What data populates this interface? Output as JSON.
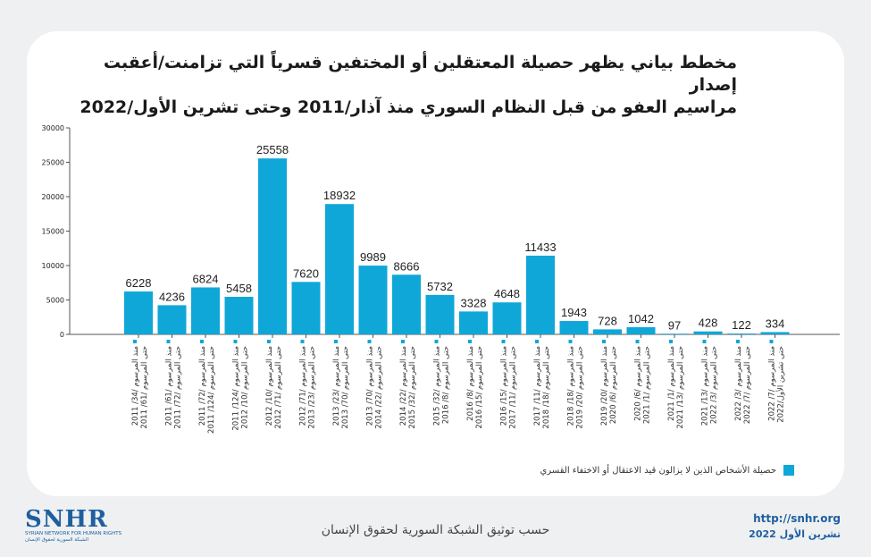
{
  "chart_data": {
    "type": "bar",
    "title": "مخطط بياني يظهر حصيلة المعتقلين أو المختفين قسرياً التي تزامنت/أعقبت إصدار مراسيم العفو من قبل النظام السوري منذ آذار/2011 وحتى تشرين الأول/2022",
    "title_lines": [
      "مخطط بياني يظهر حصيلة المعتقلين أو المختفين قسرياً التي تزامنت/أعقبت إصدار",
      "مراسيم العفو من قبل النظام السوري منذ آذار/2011 وحتى تشرين الأول/2022"
    ],
    "xlabel": "",
    "ylabel": "",
    "ylim": [
      0,
      30000
    ],
    "yticks": [
      0,
      5000,
      10000,
      15000,
      20000,
      25000,
      30000
    ],
    "grid": false,
    "legend_position": "bottom-right",
    "categories": [
      [
        "منذ المرسوم /34/ 2011",
        "حتى المرسوم /61/ 2011"
      ],
      [
        "منذ المرسوم /61/ 2011",
        "حتى المرسوم /72/ 2011"
      ],
      [
        "منذ المرسوم /72/ 2011",
        "حتى المرسوم /124/ 2011"
      ],
      [
        "منذ المرسوم /124/ 2011",
        "حتى المرسوم /10/ 2012"
      ],
      [
        "منذ المرسوم /10/ 2012",
        "حتى المرسوم /71/ 2012"
      ],
      [
        "منذ المرسوم /71/ 2012",
        "حتى المرسوم /23/ 2013"
      ],
      [
        "منذ المرسوم /23/ 2013",
        "حتى المرسوم /70/ 2013"
      ],
      [
        "منذ المرسوم /70/ 2013",
        "حتى المرسوم /22/ 2014"
      ],
      [
        "منذ المرسوم /22/ 2014",
        "حتى المرسوم /32/ 2015"
      ],
      [
        "منذ المرسوم /32/ 2015",
        "حتى المرسوم /8/ 2016"
      ],
      [
        "منذ المرسوم /8/ 2016",
        "حتى المرسوم /15/ 2016"
      ],
      [
        "منذ المرسوم /15/ 2016",
        "حتى المرسوم /11/ 2017"
      ],
      [
        "منذ المرسوم /11/ 2017",
        "حتى المرسوم /18/ 2018"
      ],
      [
        "منذ المرسوم /18/ 2018",
        "حتى المرسوم /20/ 2019"
      ],
      [
        "منذ المرسوم /20/ 2019",
        "حتى المرسوم /6/ 2020"
      ],
      [
        "منذ المرسوم /6/ 2020",
        "حتى المرسوم /1/ 2021"
      ],
      [
        "منذ المرسوم /1/ 2021",
        "حتى المرسوم /13/ 2021"
      ],
      [
        "منذ المرسوم /13/ 2021",
        "حتى المرسوم /3/ 2022"
      ],
      [
        "منذ المرسوم /3/ 2022",
        "حتى المرسوم /7/ 2022"
      ],
      [
        "منذ المرسوم /7/ 2022",
        "حتى تشرين الأول/2022"
      ]
    ],
    "series": [
      {
        "name": "حصيلة الأشخاص الذين لا يزالون قيد الاعتقال أو الاختفاء القسري",
        "color": "#0fa7d8",
        "values": [
          6228,
          4236,
          6824,
          5458,
          25558,
          7620,
          18932,
          9989,
          8666,
          5732,
          3328,
          4648,
          11433,
          1943,
          728,
          1042,
          97,
          428,
          122,
          334
        ]
      }
    ]
  },
  "footer": {
    "logo_text": "SNHR",
    "logo_sub_en": "SYRIAN NETWORK FOR HUMAN RIGHTS",
    "logo_sub_ar": "الشبكة السورية لحقوق الإنسان",
    "source": "حسب توثيق الشبكة السورية لحقوق الإنسان",
    "url": "http://snhr.org",
    "date": "تشرين الأول 2022"
  }
}
